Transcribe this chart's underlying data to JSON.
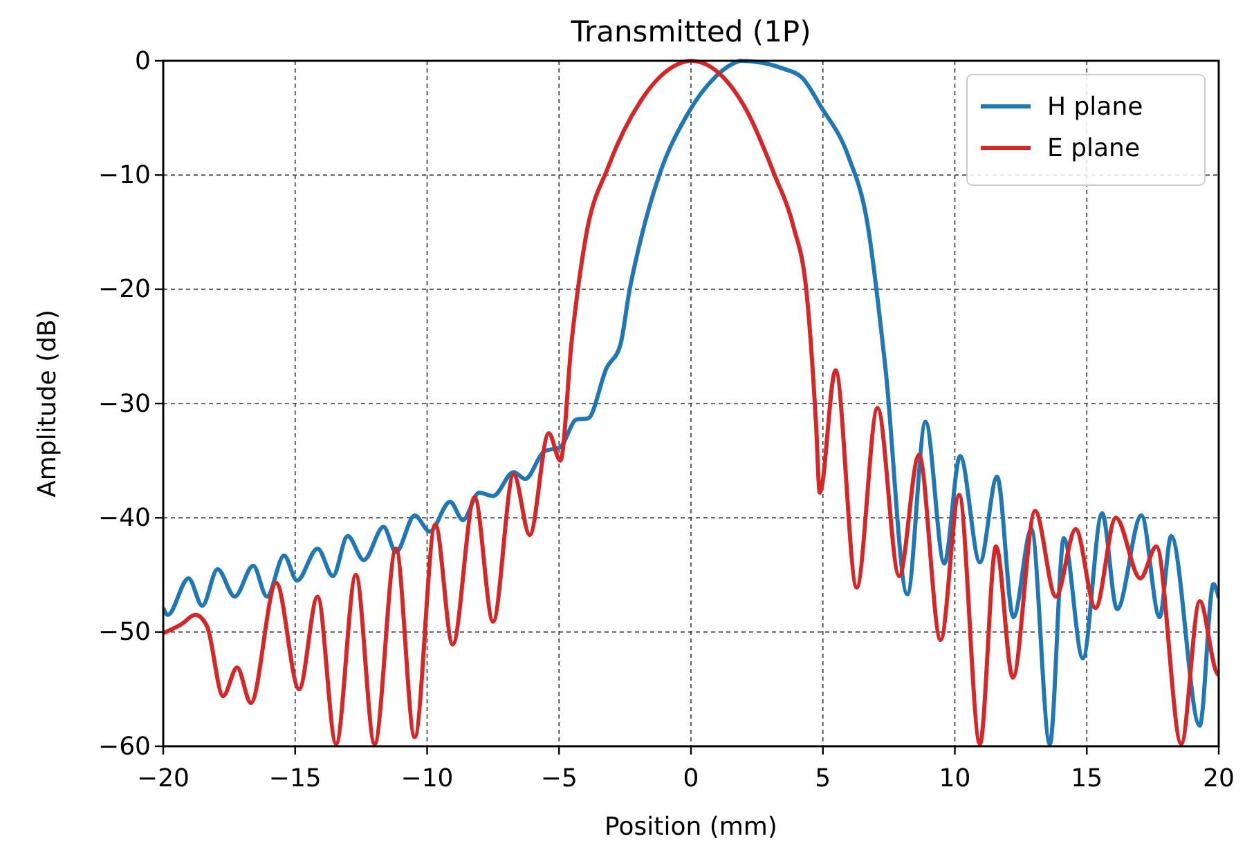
{
  "chart_data": {
    "type": "line",
    "title": "Transmitted (1P)",
    "xlabel": "Position (mm)",
    "ylabel": "Amplitude (dB)",
    "xlim": [
      -20,
      20
    ],
    "ylim": [
      -60,
      0
    ],
    "xticks": [
      {
        "value": -20,
        "label": "−20"
      },
      {
        "value": -15,
        "label": "−15"
      },
      {
        "value": -10,
        "label": "−10"
      },
      {
        "value": -5,
        "label": "−5"
      },
      0,
      5,
      10,
      15,
      20
    ],
    "yticks": [
      {
        "value": -60,
        "label": "−60"
      },
      {
        "value": -50,
        "label": "−50"
      },
      {
        "value": -40,
        "label": "−40"
      },
      {
        "value": -30,
        "label": "−30"
      },
      {
        "value": -20,
        "label": "−20"
      },
      {
        "value": -10,
        "label": "−10"
      },
      0
    ],
    "grid": true,
    "legend": "top right",
    "line_style": "solid",
    "marker": "none",
    "series": [
      {
        "name": "H plane",
        "color": "#1f77b4",
        "x": [
          -20,
          -19.83,
          -19.04,
          -18.52,
          -17.94,
          -17.29,
          -16.59,
          -16.07,
          -15.42,
          -14.93,
          -14.15,
          -13.57,
          -13.01,
          -12.4,
          -11.65,
          -11.18,
          -10.47,
          -9.9,
          -9.13,
          -8.64,
          -8.03,
          -7.5,
          -6.72,
          -6.28,
          -5.57,
          -4.95,
          -4.34,
          -3.9,
          -3.2,
          -2.68,
          -2.33,
          -1.9,
          -1.2,
          -0.15,
          0.72,
          1.6,
          1.9,
          3.52,
          4.22,
          4.92,
          5.97,
          6.67,
          7.37,
          8.2,
          8.89,
          9.6,
          10.2,
          10.95,
          11.6,
          12.22,
          12.9,
          13.6,
          14.13,
          14.85,
          15.58,
          16.15,
          17.07,
          17.76,
          18.2,
          19.28,
          19.8,
          20
        ],
        "values": [
          -47.9,
          -48.5,
          -45.3,
          -47.7,
          -44.5,
          -46.9,
          -44.2,
          -46.9,
          -43.3,
          -45.5,
          -42.7,
          -45.1,
          -41.6,
          -43.7,
          -40.8,
          -43,
          -39.8,
          -41.2,
          -38.6,
          -40.2,
          -37.8,
          -38.1,
          -36,
          -36.6,
          -34.2,
          -33.8,
          -31.4,
          -31.3,
          -26.9,
          -24.9,
          -20.1,
          -15.6,
          -10,
          -4.75,
          -1.9,
          -0.24,
          0,
          -0.7,
          -1.5,
          -4,
          -8.4,
          -14,
          -26.9,
          -46.7,
          -31.6,
          -44,
          -34.6,
          -43.9,
          -36.4,
          -48.7,
          -41,
          -59.8,
          -41.8,
          -52.3,
          -39.6,
          -48,
          -39.8,
          -48.7,
          -41.6,
          -58.2,
          -45.8,
          -47
        ]
      },
      {
        "name": "E plane",
        "color": "#d62728",
        "x": [
          -20,
          -19.3,
          -18.78,
          -18.34,
          -17.73,
          -17.2,
          -16.68,
          -15.72,
          -14.85,
          -14.15,
          -13.45,
          -12.7,
          -11.99,
          -11.18,
          -10.47,
          -9.69,
          -9.03,
          -8.2,
          -7.5,
          -6.72,
          -6.11,
          -5.39,
          -4.95,
          -4.52,
          -4,
          -3.12,
          -1.9,
          -0.67,
          0,
          1.07,
          2.12,
          3.17,
          3.87,
          4.39,
          4.74,
          4.88,
          5.48,
          6.28,
          7.07,
          7.89,
          8.64,
          9.46,
          10.16,
          10.95,
          11.56,
          12.2,
          13.04,
          13.83,
          14.58,
          15.33,
          16.1,
          17.03,
          17.64,
          18.58,
          19.28,
          19.91,
          20
        ],
        "values": [
          -50.1,
          -49.3,
          -48.5,
          -49.5,
          -55.6,
          -53.1,
          -56.2,
          -45.7,
          -55,
          -46.9,
          -59.8,
          -45,
          -59.8,
          -42.7,
          -59.2,
          -40.6,
          -51.1,
          -38.2,
          -49.1,
          -36.2,
          -41.5,
          -32.6,
          -35,
          -24.5,
          -15.6,
          -9.2,
          -3.5,
          -0.5,
          0,
          -1.1,
          -4.4,
          -10,
          -14.4,
          -20.5,
          -31.8,
          -37.8,
          -27.1,
          -46.1,
          -30.4,
          -45.1,
          -34.5,
          -50.7,
          -38,
          -59.8,
          -42.5,
          -54,
          -39.4,
          -46.9,
          -41,
          -47.9,
          -40,
          -45.3,
          -42.5,
          -59.8,
          -47.3,
          -53.5,
          -53.8
        ]
      }
    ]
  }
}
